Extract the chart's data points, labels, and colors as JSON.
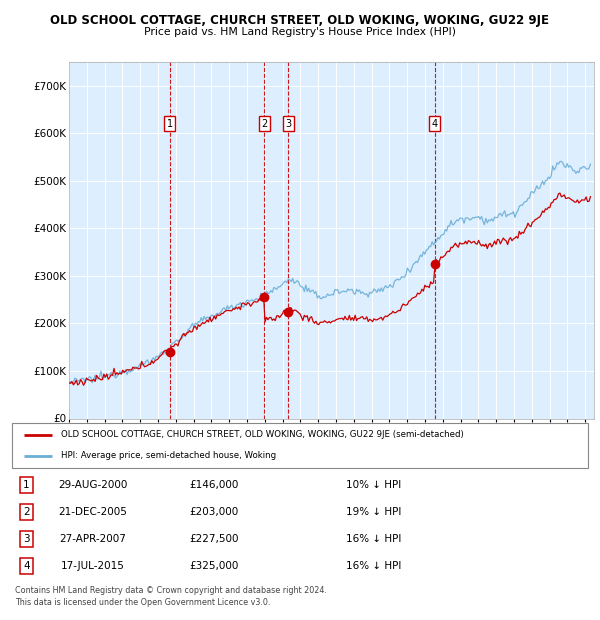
{
  "title": "OLD SCHOOL COTTAGE, CHURCH STREET, OLD WOKING, WOKING, GU22 9JE",
  "subtitle": "Price paid vs. HM Land Registry's House Price Index (HPI)",
  "footer": "Contains HM Land Registry data © Crown copyright and database right 2024.\nThis data is licensed under the Open Government Licence v3.0.",
  "legend_line1": "OLD SCHOOL COTTAGE, CHURCH STREET, OLD WOKING, WOKING, GU22 9JE (semi-detached)",
  "legend_line2": "HPI: Average price, semi-detached house, Woking",
  "transactions": [
    {
      "id": 1,
      "date": "29-AUG-2000",
      "price": "£146,000",
      "pct": "10% ↓ HPI",
      "year_x": 2000.65
    },
    {
      "id": 2,
      "date": "21-DEC-2005",
      "price": "£203,000",
      "pct": "19% ↓ HPI",
      "year_x": 2005.97
    },
    {
      "id": 3,
      "date": "27-APR-2007",
      "price": "£227,500",
      "pct": "16% ↓ HPI",
      "year_x": 2007.32
    },
    {
      "id": 4,
      "date": "17-JUL-2015",
      "price": "£325,000",
      "pct": "16% ↓ HPI",
      "year_x": 2015.54
    }
  ],
  "hpi_color": "#6baed6",
  "price_color": "#cc0000",
  "dashed_color": "#cc0000",
  "bg_color": "#ddeeff",
  "ylim": [
    0,
    750000
  ],
  "xlim_start": 1995.0,
  "xlim_end": 2024.5,
  "xtick_years": [
    1995,
    1996,
    1997,
    1998,
    1999,
    2000,
    2001,
    2002,
    2003,
    2004,
    2005,
    2006,
    2007,
    2008,
    2009,
    2010,
    2011,
    2012,
    2013,
    2014,
    2015,
    2016,
    2017,
    2018,
    2019,
    2020,
    2021,
    2022,
    2023,
    2024
  ]
}
